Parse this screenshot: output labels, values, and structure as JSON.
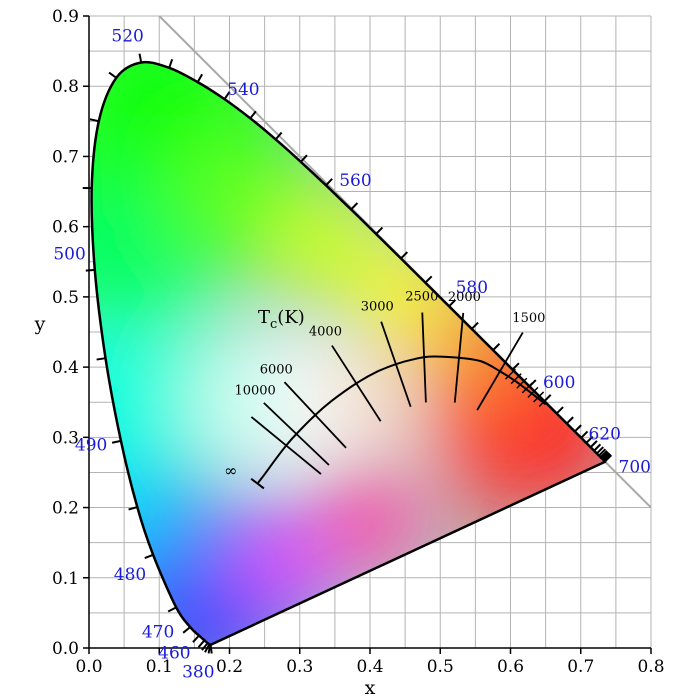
{
  "chart_data": {
    "type": "scatter",
    "title": "",
    "xlabel": "x",
    "ylabel": "y",
    "xlim": [
      0.0,
      0.8
    ],
    "ylim": [
      0.0,
      0.9
    ],
    "x_ticks": [
      "0.0",
      "0.1",
      "0.2",
      "0.3",
      "0.4",
      "0.5",
      "0.6",
      "0.7",
      "0.8"
    ],
    "y_ticks": [
      "0.0",
      "0.1",
      "0.2",
      "0.3",
      "0.4",
      "0.5",
      "0.6",
      "0.7",
      "0.8",
      "0.9"
    ],
    "grid": true,
    "spectral_locus": {
      "points": [
        [
          0.1741,
          0.005
        ],
        [
          0.173,
          0.0048
        ],
        [
          0.1726,
          0.0048
        ],
        [
          0.1714,
          0.0051
        ],
        [
          0.1689,
          0.0069
        ],
        [
          0.1644,
          0.0109
        ],
        [
          0.1566,
          0.0177
        ],
        [
          0.144,
          0.0297
        ],
        [
          0.1241,
          0.0578
        ],
        [
          0.0913,
          0.1327
        ],
        [
          0.0687,
          0.2007
        ],
        [
          0.0454,
          0.295
        ],
        [
          0.0235,
          0.4127
        ],
        [
          0.0082,
          0.5384
        ],
        [
          0.0039,
          0.6548
        ],
        [
          0.0139,
          0.7502
        ],
        [
          0.0389,
          0.812
        ],
        [
          0.0743,
          0.8338
        ],
        [
          0.1142,
          0.8262
        ],
        [
          0.1547,
          0.8059
        ],
        [
          0.1929,
          0.7816
        ],
        [
          0.2296,
          0.7543
        ],
        [
          0.2658,
          0.7243
        ],
        [
          0.3016,
          0.6923
        ],
        [
          0.3373,
          0.6589
        ],
        [
          0.3731,
          0.6245
        ],
        [
          0.4087,
          0.5896
        ],
        [
          0.4441,
          0.5547
        ],
        [
          0.4788,
          0.5202
        ],
        [
          0.5125,
          0.4866
        ],
        [
          0.5448,
          0.4544
        ],
        [
          0.5752,
          0.4242
        ],
        [
          0.6029,
          0.3965
        ],
        [
          0.627,
          0.3725
        ],
        [
          0.6482,
          0.3514
        ],
        [
          0.6658,
          0.334
        ],
        [
          0.6801,
          0.3197
        ],
        [
          0.6915,
          0.3083
        ],
        [
          0.7006,
          0.2993
        ],
        [
          0.7079,
          0.292
        ],
        [
          0.714,
          0.2859
        ],
        [
          0.719,
          0.2809
        ],
        [
          0.723,
          0.277
        ],
        [
          0.726,
          0.274
        ],
        [
          0.7283,
          0.2717
        ],
        [
          0.73,
          0.27
        ],
        [
          0.7311,
          0.2689
        ],
        [
          0.732,
          0.268
        ],
        [
          0.7327,
          0.2673
        ],
        [
          0.7334,
          0.2666
        ],
        [
          0.734,
          0.266
        ],
        [
          0.7344,
          0.2656
        ],
        [
          0.7347,
          0.2653
        ]
      ]
    },
    "wavelength_labels": [
      {
        "text": "380",
        "x": 0.1741,
        "y": 0.005
      },
      {
        "text": "460",
        "x": 0.144,
        "y": 0.0297
      },
      {
        "text": "470",
        "x": 0.1241,
        "y": 0.0578
      },
      {
        "text": "480",
        "x": 0.0913,
        "y": 0.1327
      },
      {
        "text": "490",
        "x": 0.0454,
        "y": 0.295
      },
      {
        "text": "500",
        "x": 0.0082,
        "y": 0.5384
      },
      {
        "text": "520",
        "x": 0.0743,
        "y": 0.8338
      },
      {
        "text": "540",
        "x": 0.2296,
        "y": 0.7543
      },
      {
        "text": "560",
        "x": 0.3731,
        "y": 0.6245
      },
      {
        "text": "580",
        "x": 0.5125,
        "y": 0.4866
      },
      {
        "text": "600",
        "x": 0.627,
        "y": 0.3725
      },
      {
        "text": "620",
        "x": 0.6915,
        "y": 0.3083
      },
      {
        "text": "700",
        "x": 0.7347,
        "y": 0.2653
      }
    ],
    "planckian_locus": {
      "points": [
        [
          0.2399,
          0.2341
        ],
        [
          0.252,
          0.25
        ],
        [
          0.265,
          0.268
        ],
        [
          0.2807,
          0.2884
        ],
        [
          0.2952,
          0.3048
        ],
        [
          0.3221,
          0.3318
        ],
        [
          0.3451,
          0.3516
        ],
        [
          0.3805,
          0.3768
        ],
        [
          0.41,
          0.3934
        ],
        [
          0.4369,
          0.4041
        ],
        [
          0.4596,
          0.4106
        ],
        [
          0.485,
          0.415
        ],
        [
          0.5267,
          0.4133
        ],
        [
          0.559,
          0.408
        ],
        [
          0.585,
          0.394
        ],
        [
          0.61,
          0.378
        ],
        [
          0.65,
          0.347
        ]
      ]
    },
    "isotherms": [
      {
        "label": "",
        "x": 0.2807,
        "y": 0.2884
      },
      {
        "label": "10000",
        "x": 0.2952,
        "y": 0.3048
      },
      {
        "label": "6000",
        "x": 0.3221,
        "y": 0.3318
      },
      {
        "label": "4000",
        "x": 0.3805,
        "y": 0.3768
      },
      {
        "label": "3000",
        "x": 0.4369,
        "y": 0.4041
      },
      {
        "label": "2500",
        "x": 0.477,
        "y": 0.4137
      },
      {
        "label": "2000",
        "x": 0.5267,
        "y": 0.4133
      },
      {
        "label": "1500",
        "x": 0.585,
        "y": 0.394
      }
    ],
    "annotations": {
      "tc": "T",
      "tc_sub": "c",
      "tc_unit": "(K)",
      "infinity": "∞"
    },
    "colors": {
      "wavelength_label": "#1a1ad9",
      "grid": "#b3b3b3",
      "locus_stroke": "#000000"
    }
  }
}
